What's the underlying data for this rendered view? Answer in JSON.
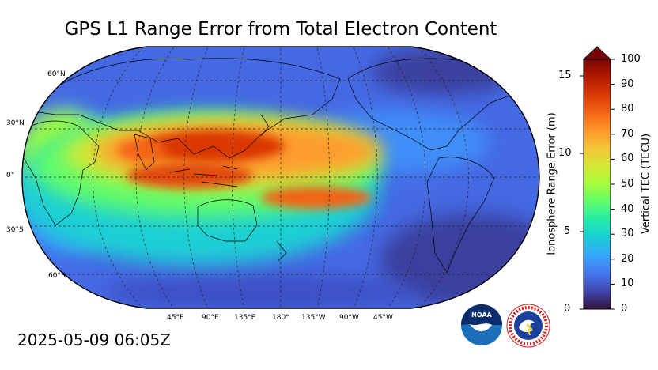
{
  "title": "GPS L1 Range Error from Total Electron Content",
  "timestamp": "2025-05-09 06:05Z",
  "map": {
    "projection": "Robinson",
    "central_longitude": 180,
    "lat_labels": [
      "60°N",
      "30°N",
      "0°",
      "30°S",
      "60°S"
    ],
    "lon_labels": [
      "45°E",
      "90°E",
      "135°E",
      "180°",
      "135°W",
      "90°W",
      "45°W"
    ],
    "gridlines": "dashed"
  },
  "colorbar": {
    "left_label": "Ionosphere Range Error (m)",
    "right_label": "Vertical TEC (TECU)",
    "left_ticks": [
      "0",
      "5",
      "10",
      "15"
    ],
    "right_ticks": [
      "0",
      "10",
      "20",
      "30",
      "40",
      "50",
      "60",
      "70",
      "80",
      "90",
      "100"
    ],
    "range_tecu": [
      0,
      100
    ],
    "range_m": [
      0,
      16.2
    ],
    "extend": "max",
    "colors": [
      "#30123b",
      "#4145ab",
      "#4675ed",
      "#39a2fc",
      "#1bcfd4",
      "#24eca6",
      "#61fc6c",
      "#a4fc3b",
      "#d1e834",
      "#f3c63a",
      "#fe9b2d",
      "#f36315",
      "#d93806",
      "#b11901",
      "#7a0403"
    ]
  },
  "logos": {
    "noaa": "NOAA",
    "nws": "NATIONAL WEATHER SERVICE"
  }
}
